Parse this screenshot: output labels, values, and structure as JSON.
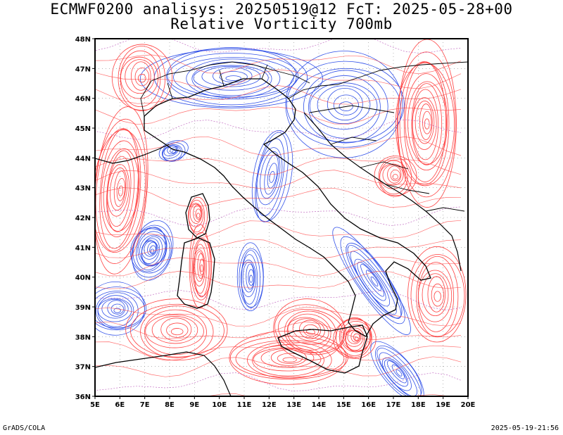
{
  "header": {
    "line1": "ECMWF0200 analisys: 20250519@12 FcT: 2025-05-28+00",
    "line2": "Relative Vorticity 700mb"
  },
  "axes": {
    "lon_labels": [
      "5E",
      "6E",
      "7E",
      "8E",
      "9E",
      "10E",
      "11E",
      "12E",
      "13E",
      "14E",
      "15E",
      "16E",
      "17E",
      "18E",
      "19E",
      "20E"
    ],
    "lat_labels": [
      "36N",
      "37N",
      "38N",
      "39N",
      "40N",
      "41N",
      "42N",
      "43N",
      "44N",
      "45N",
      "46N",
      "47N",
      "48N"
    ],
    "lon_range": [
      5,
      20
    ],
    "lat_range": [
      36,
      48
    ]
  },
  "colors": {
    "positive_contours": "#ff4040",
    "negative_contours": "#3050e8",
    "zero_contour": "#b040b0",
    "coastline": "#000000",
    "grid": "#888888"
  },
  "footer": {
    "left": "GrADS/COLA",
    "right": "2025-05-19-21:56"
  }
}
